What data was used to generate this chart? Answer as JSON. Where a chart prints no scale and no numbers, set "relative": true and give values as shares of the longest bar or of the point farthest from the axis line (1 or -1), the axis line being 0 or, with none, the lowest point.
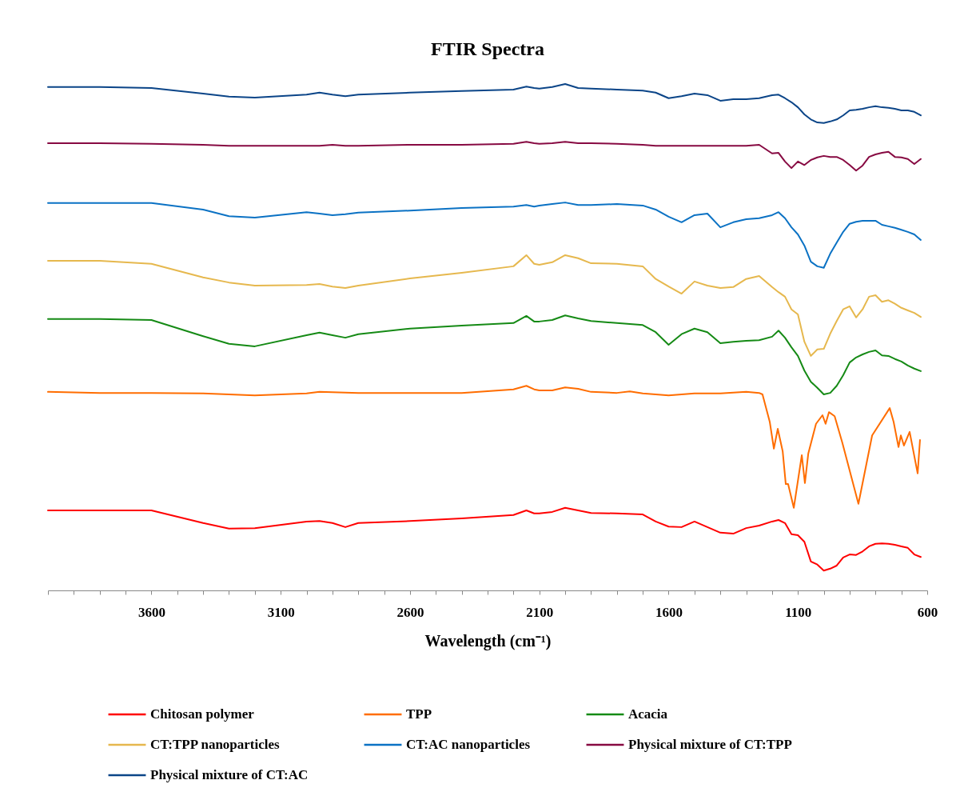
{
  "chart_data": {
    "type": "line",
    "title": "FTIR Spectra",
    "xlabel": "Wavelength (cm⁻¹)",
    "relative": true,
    "legend": "bottom",
    "xlim": [
      4000,
      600
    ],
    "xticks": [
      {
        "value": 4000,
        "label": null
      },
      {
        "value": 3900,
        "label": null
      },
      {
        "value": 3800,
        "label": null
      },
      {
        "value": 3700,
        "label": null
      },
      3600,
      {
        "value": 3500,
        "label": null
      },
      {
        "value": 3400,
        "label": null
      },
      {
        "value": 3300,
        "label": null
      },
      {
        "value": 3200,
        "label": null
      },
      3100,
      {
        "value": 3000,
        "label": null
      },
      {
        "value": 2900,
        "label": null
      },
      {
        "value": 2800,
        "label": null
      },
      {
        "value": 2700,
        "label": null
      },
      2600,
      {
        "value": 2500,
        "label": null
      },
      {
        "value": 2400,
        "label": null
      },
      {
        "value": 2300,
        "label": null
      },
      {
        "value": 2200,
        "label": null
      },
      2100,
      {
        "value": 2000,
        "label": null
      },
      {
        "value": 1900,
        "label": null
      },
      {
        "value": 1800,
        "label": null
      },
      {
        "value": 1700,
        "label": null
      },
      1600,
      {
        "value": 1500,
        "label": null
      },
      {
        "value": 1400,
        "label": null
      },
      {
        "value": 1300,
        "label": null
      },
      {
        "value": 1200,
        "label": null
      },
      1100,
      {
        "value": 1000,
        "label": null
      },
      {
        "value": 900,
        "label": null
      },
      {
        "value": 800,
        "label": null
      },
      {
        "value": 700,
        "label": null
      },
      600
    ],
    "x": [
      4000,
      3800,
      3600,
      3400,
      3300,
      3200,
      3000,
      2950,
      2900,
      2850,
      2800,
      2600,
      2400,
      2200,
      2150,
      2120,
      2100,
      2050,
      2000,
      1950,
      1900,
      1800,
      1700,
      1650,
      1600,
      1550,
      1500,
      1450,
      1400,
      1350,
      1300,
      1250,
      1200,
      1175,
      1150,
      1125,
      1100,
      1075,
      1050,
      1025,
      1000,
      975,
      950,
      925,
      900,
      875,
      850,
      825,
      800,
      775,
      750,
      725,
      700,
      675,
      650,
      625
    ],
    "series": [
      {
        "name": "Chitosan polymer",
        "color": "#ff0000",
        "values": [
          0.158,
          0.158,
          0.158,
          0.133,
          0.122,
          0.123,
          0.136,
          0.137,
          0.133,
          0.125,
          0.133,
          0.137,
          0.142,
          0.149,
          0.158,
          0.152,
          0.152,
          0.155,
          0.163,
          0.158,
          0.153,
          0.152,
          0.15,
          0.136,
          0.126,
          0.125,
          0.136,
          0.125,
          0.114,
          0.112,
          0.123,
          0.128,
          0.136,
          0.139,
          0.133,
          0.111,
          0.109,
          0.096,
          0.057,
          0.051,
          0.039,
          0.043,
          0.049,
          0.065,
          0.071,
          0.07,
          0.077,
          0.087,
          0.092,
          0.093,
          0.092,
          0.09,
          0.087,
          0.084,
          0.071,
          0.066
        ]
      },
      {
        "name": "TPP",
        "color": "#ff6d00",
        "x": [
          4000,
          3800,
          3600,
          3400,
          3200,
          3000,
          2950,
          2800,
          2600,
          2400,
          2200,
          2150,
          2120,
          2100,
          2050,
          2000,
          1950,
          1900,
          1800,
          1750,
          1700,
          1600,
          1500,
          1400,
          1300,
          1250,
          1237,
          1209,
          1193,
          1178,
          1159,
          1147,
          1138,
          1116,
          1085,
          1073,
          1060,
          1030,
          1005,
          993,
          980,
          958,
          928,
          866,
          813,
          745,
          730,
          711,
          702,
          690,
          668,
          637,
          628
        ],
        "values": [
          0.392,
          0.39,
          0.39,
          0.389,
          0.385,
          0.389,
          0.392,
          0.39,
          0.39,
          0.39,
          0.397,
          0.404,
          0.397,
          0.395,
          0.395,
          0.401,
          0.398,
          0.392,
          0.39,
          0.393,
          0.389,
          0.385,
          0.389,
          0.389,
          0.392,
          0.39,
          0.387,
          0.333,
          0.28,
          0.319,
          0.275,
          0.21,
          0.21,
          0.163,
          0.267,
          0.212,
          0.27,
          0.329,
          0.346,
          0.329,
          0.352,
          0.344,
          0.291,
          0.171,
          0.306,
          0.36,
          0.333,
          0.283,
          0.306,
          0.286,
          0.313,
          0.231,
          0.297
        ]
      },
      {
        "name": "Acacia",
        "color": "#158a15",
        "values": [
          0.536,
          0.536,
          0.534,
          0.502,
          0.487,
          0.482,
          0.504,
          0.509,
          0.504,
          0.499,
          0.506,
          0.517,
          0.523,
          0.528,
          0.542,
          0.531,
          0.531,
          0.534,
          0.543,
          0.537,
          0.532,
          0.528,
          0.524,
          0.51,
          0.485,
          0.506,
          0.517,
          0.51,
          0.488,
          0.491,
          0.493,
          0.494,
          0.501,
          0.513,
          0.499,
          0.48,
          0.463,
          0.434,
          0.412,
          0.4,
          0.387,
          0.39,
          0.404,
          0.425,
          0.45,
          0.46,
          0.466,
          0.471,
          0.474,
          0.464,
          0.463,
          0.457,
          0.452,
          0.444,
          0.438,
          0.433
        ]
      },
      {
        "name": "CT:TPP nanoparticles",
        "color": "#e6b84e",
        "values": [
          0.651,
          0.651,
          0.645,
          0.618,
          0.608,
          0.602,
          0.603,
          0.605,
          0.6,
          0.597,
          0.602,
          0.616,
          0.627,
          0.64,
          0.662,
          0.645,
          0.643,
          0.648,
          0.662,
          0.656,
          0.646,
          0.645,
          0.64,
          0.615,
          0.6,
          0.586,
          0.61,
          0.602,
          0.597,
          0.599,
          0.615,
          0.621,
          0.599,
          0.589,
          0.58,
          0.555,
          0.545,
          0.491,
          0.463,
          0.476,
          0.477,
          0.507,
          0.532,
          0.555,
          0.561,
          0.539,
          0.555,
          0.58,
          0.583,
          0.57,
          0.573,
          0.566,
          0.558,
          0.553,
          0.548,
          0.54
        ]
      },
      {
        "name": "CT:AC nanoparticles",
        "color": "#0b72c4",
        "values": [
          0.765,
          0.765,
          0.765,
          0.752,
          0.739,
          0.736,
          0.747,
          0.744,
          0.741,
          0.743,
          0.746,
          0.75,
          0.755,
          0.758,
          0.761,
          0.758,
          0.76,
          0.763,
          0.766,
          0.761,
          0.761,
          0.763,
          0.76,
          0.752,
          0.738,
          0.727,
          0.741,
          0.744,
          0.717,
          0.727,
          0.733,
          0.735,
          0.741,
          0.747,
          0.735,
          0.717,
          0.703,
          0.681,
          0.649,
          0.64,
          0.637,
          0.665,
          0.687,
          0.708,
          0.724,
          0.728,
          0.73,
          0.73,
          0.73,
          0.722,
          0.719,
          0.716,
          0.712,
          0.708,
          0.703,
          0.692
        ]
      },
      {
        "name": "Physical mixture of CT:TPP",
        "color": "#870a42",
        "values": [
          0.883,
          0.883,
          0.882,
          0.88,
          0.878,
          0.878,
          0.878,
          0.878,
          0.88,
          0.878,
          0.878,
          0.88,
          0.88,
          0.882,
          0.886,
          0.883,
          0.882,
          0.883,
          0.886,
          0.883,
          0.883,
          0.882,
          0.88,
          0.878,
          0.878,
          0.878,
          0.878,
          0.878,
          0.878,
          0.878,
          0.878,
          0.88,
          0.863,
          0.864,
          0.847,
          0.834,
          0.847,
          0.84,
          0.85,
          0.855,
          0.858,
          0.856,
          0.856,
          0.85,
          0.84,
          0.829,
          0.839,
          0.856,
          0.861,
          0.864,
          0.866,
          0.856,
          0.855,
          0.852,
          0.842,
          0.852
        ]
      },
      {
        "name": "Physical mixture of CT:AC",
        "color": "#0b4588",
        "values": [
          0.994,
          0.994,
          0.992,
          0.981,
          0.975,
          0.973,
          0.979,
          0.983,
          0.979,
          0.976,
          0.979,
          0.983,
          0.986,
          0.989,
          0.995,
          0.992,
          0.991,
          0.994,
          1,
          0.992,
          0.991,
          0.989,
          0.987,
          0.983,
          0.972,
          0.976,
          0.981,
          0.978,
          0.967,
          0.97,
          0.97,
          0.972,
          0.978,
          0.979,
          0.972,
          0.964,
          0.954,
          0.94,
          0.93,
          0.924,
          0.923,
          0.926,
          0.93,
          0.938,
          0.948,
          0.949,
          0.951,
          0.954,
          0.956,
          0.954,
          0.953,
          0.951,
          0.948,
          0.948,
          0.945,
          0.938
        ]
      }
    ]
  }
}
